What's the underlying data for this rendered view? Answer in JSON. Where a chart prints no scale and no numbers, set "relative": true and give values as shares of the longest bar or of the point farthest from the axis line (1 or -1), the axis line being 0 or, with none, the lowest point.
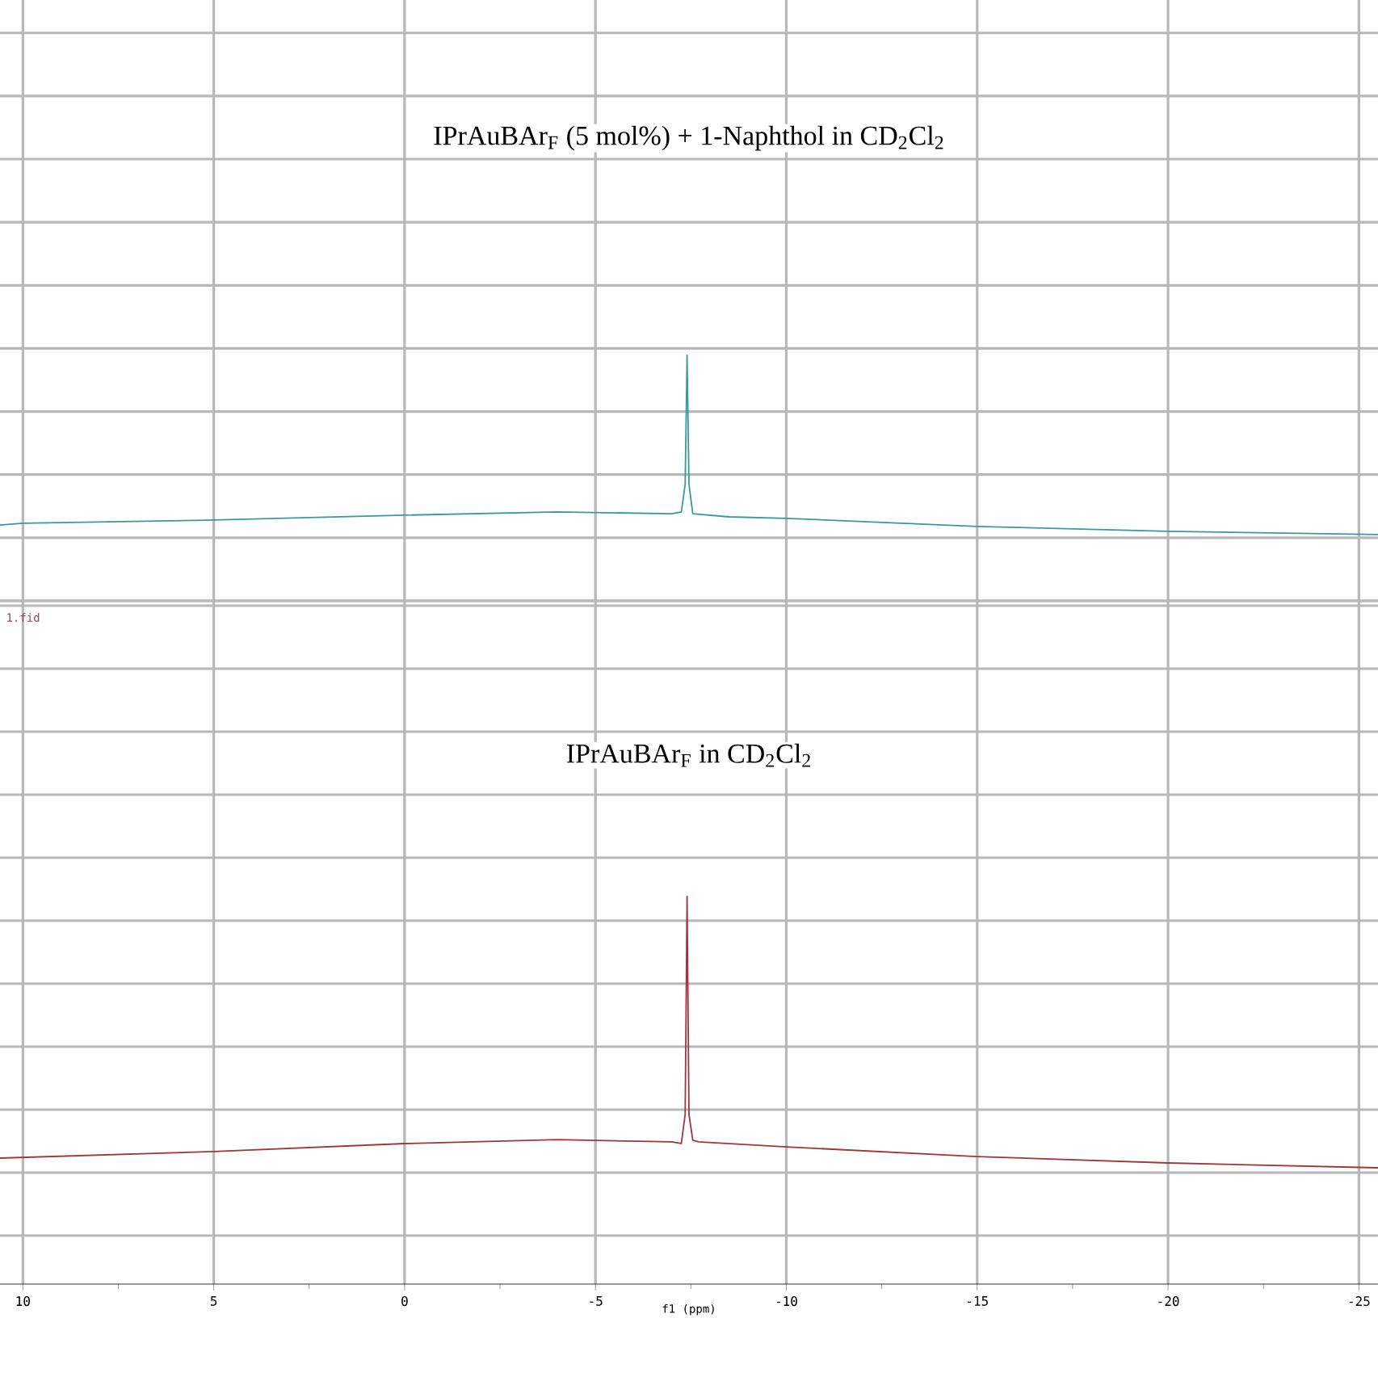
{
  "chart_data": [
    {
      "type": "line",
      "title": "IPrAuBAr$_{F}$ (5 mol%) + 1-Naphthol in CD$_{2}$Cl$_{2}$",
      "relative": true,
      "xlim": [
        10.6,
        -25.5
      ],
      "xticks": [
        10,
        5,
        0,
        -5,
        -10,
        -15,
        -20,
        -25
      ],
      "tick_labels": false,
      "grid": true,
      "marker": "none",
      "series": [
        {
          "color": "#3a9a9a",
          "x": [
            10.6,
            10,
            5,
            0,
            -4,
            -7,
            -7.25,
            -7.35,
            -7.4,
            -7.45,
            -7.55,
            -8.5,
            -10,
            -15,
            -20,
            -25.5
          ],
          "values": [
            0.309,
            0.316,
            0.329,
            0.349,
            0.362,
            0.355,
            0.362,
            0.474,
            1,
            0.474,
            0.355,
            0.342,
            0.336,
            0.303,
            0.283,
            0.27
          ]
        }
      ]
    },
    {
      "type": "line",
      "title": "IPrAuBAr$_{F}$ in CD$_{2}$Cl$_{2}$",
      "xlabel": "f1 (ppm)",
      "annotations": [
        "1.fid"
      ],
      "relative": true,
      "xlim": [
        10.6,
        -25.5
      ],
      "xticks": [
        10,
        5,
        0,
        -5,
        -10,
        -15,
        -20,
        -25
      ],
      "tick_labels": "x",
      "grid": true,
      "marker": "none",
      "series": [
        {
          "color": "#a0363c",
          "x": [
            10.6,
            5,
            0,
            -4,
            -7,
            -7.25,
            -7.35,
            -7.4,
            -7.45,
            -7.55,
            -7.7,
            -10,
            -15,
            -20,
            -25.5
          ],
          "values": [
            0.325,
            0.342,
            0.3625,
            0.3725,
            0.367,
            0.3625,
            0.4375,
            1,
            0.4375,
            0.371,
            0.367,
            0.354,
            0.329,
            0.3125,
            0.3
          ]
        }
      ]
    }
  ]
}
